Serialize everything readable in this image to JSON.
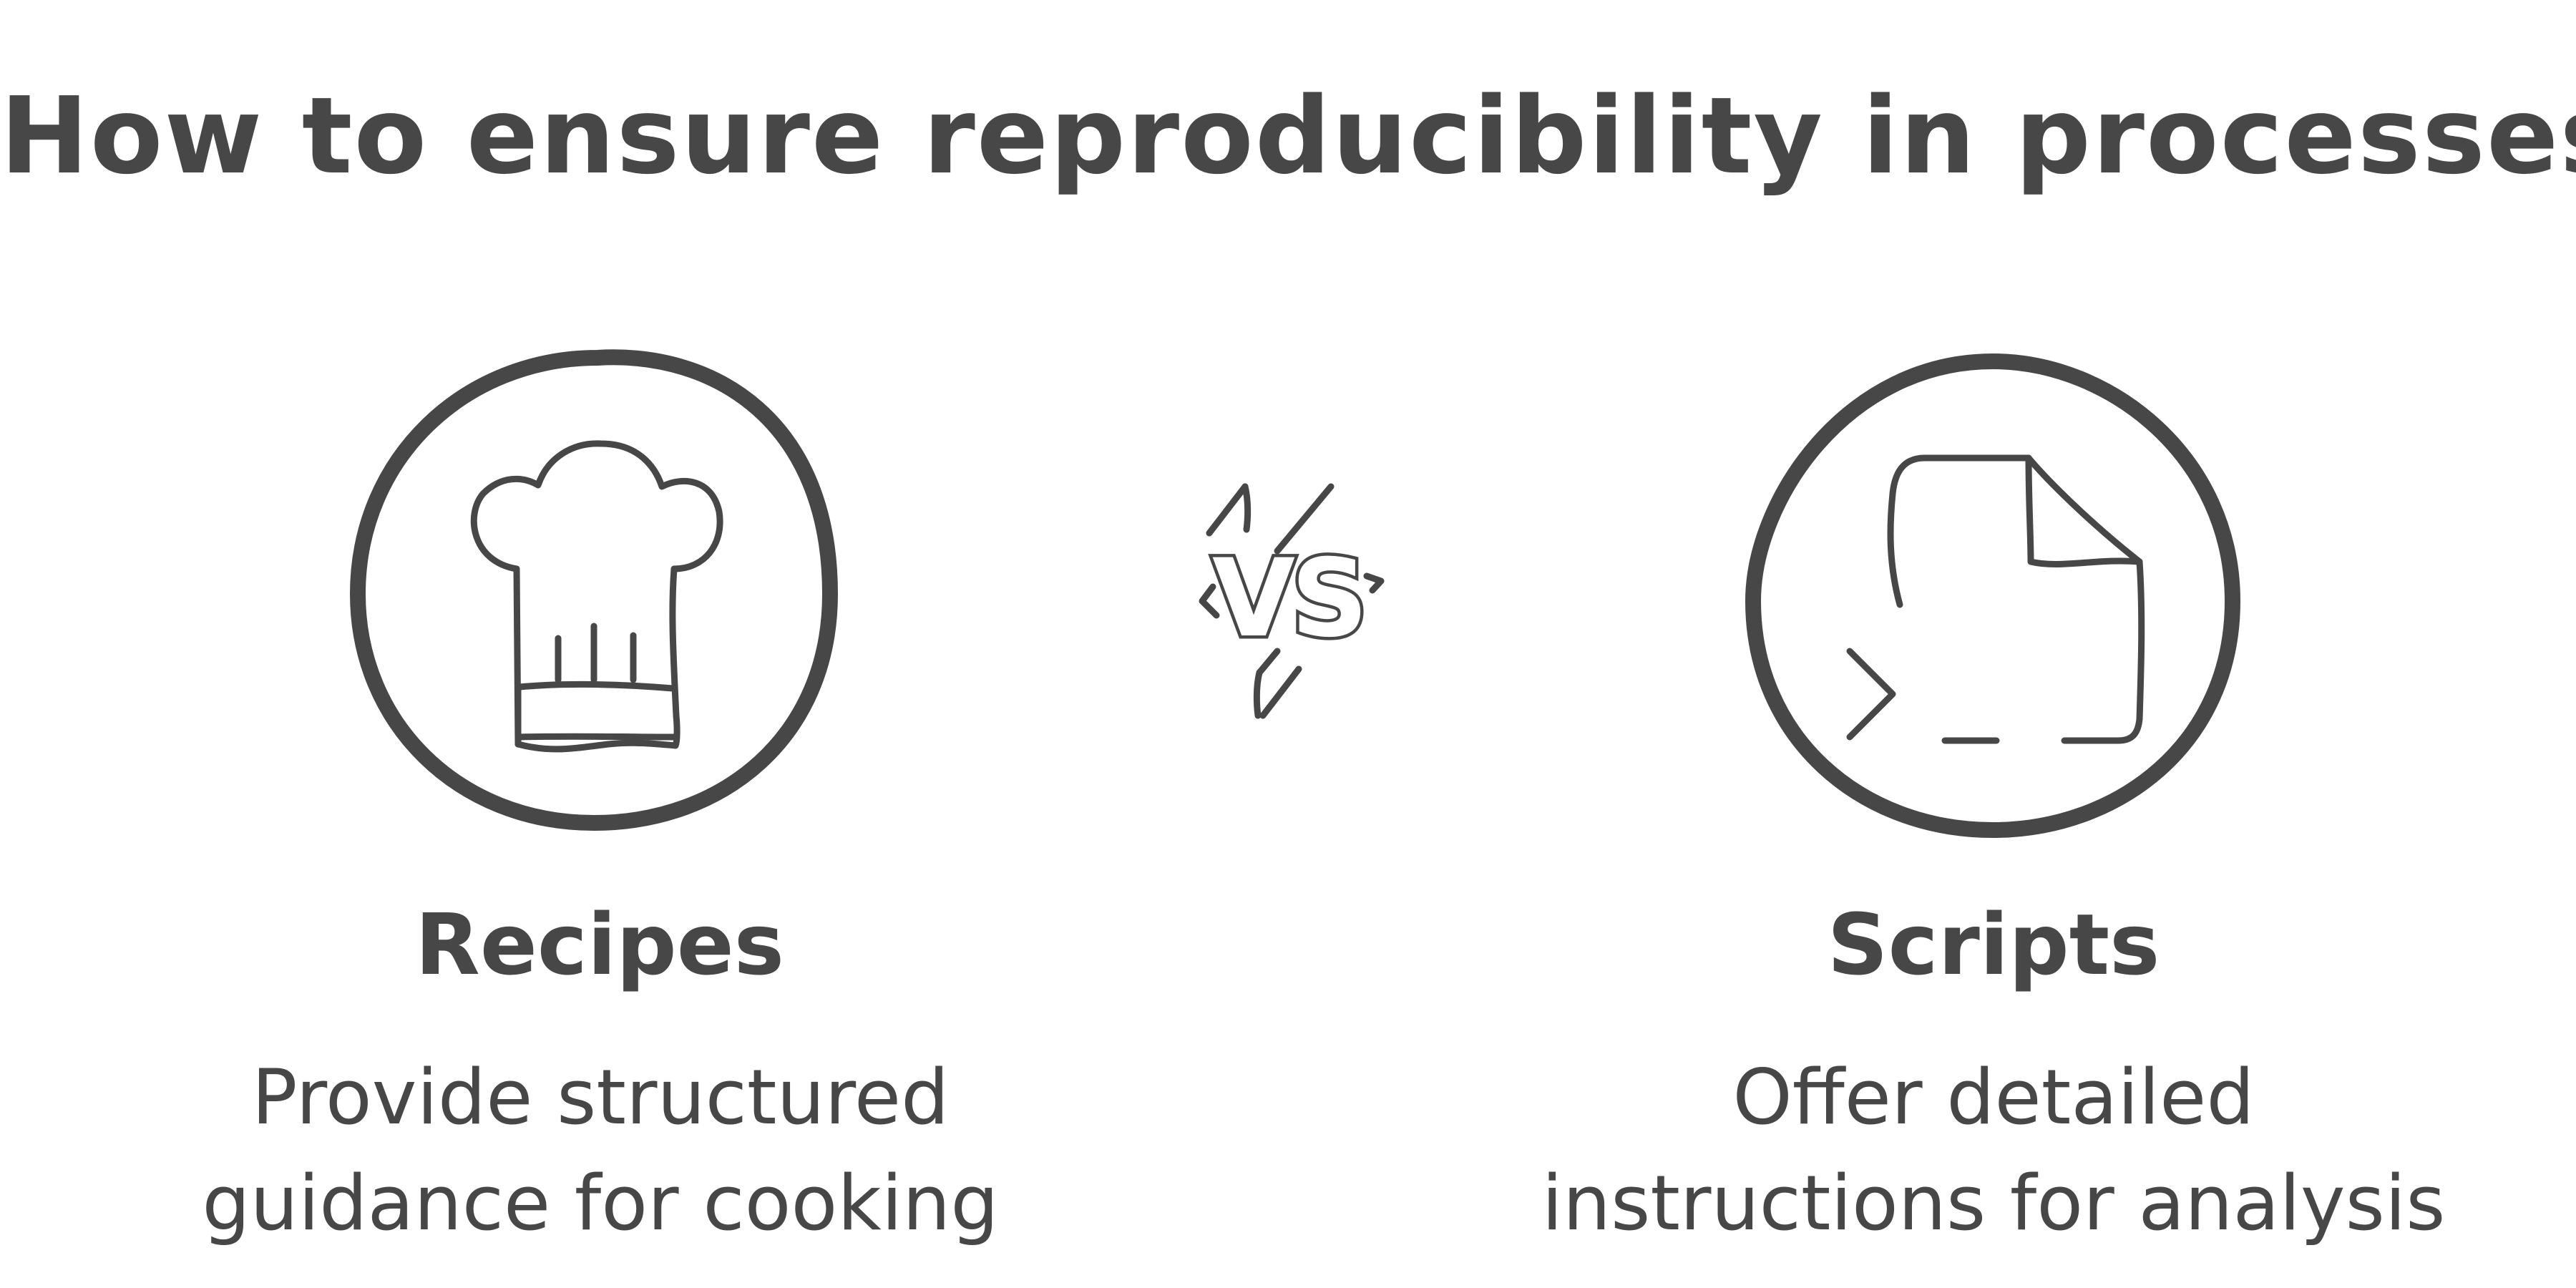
{
  "title": "How to ensure reproducibility in processes?",
  "versus_label": "VS",
  "left": {
    "icon": "chef-hat-icon",
    "title": "Recipes",
    "description_lines": [
      "Provide structured",
      "guidance for cooking"
    ]
  },
  "right": {
    "icon": "script-file-terminal-icon",
    "title": "Scripts",
    "description_lines": [
      "Offer detailed",
      "instructions for analysis"
    ]
  },
  "colors": {
    "ink": "#474747",
    "background": "#ffffff"
  }
}
